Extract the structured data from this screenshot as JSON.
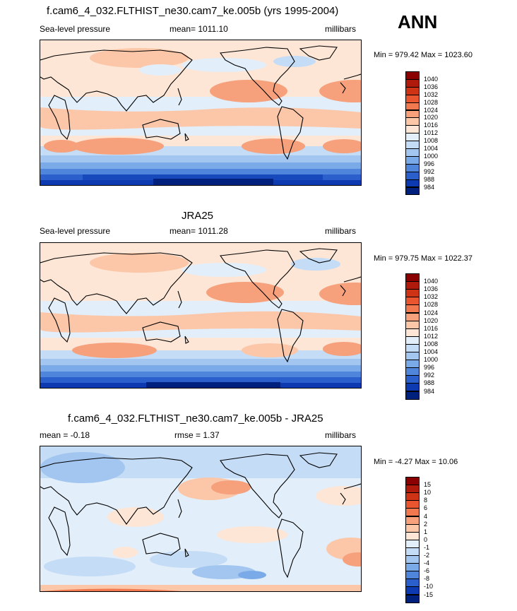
{
  "season_label": "ANN",
  "panels": [
    {
      "title": "f.cam6_4_032.FLTHIST_ne30.cam7_ke.005b (yrs 1995-2004)",
      "left_label": "Sea-level pressure",
      "center_label": "mean= 1011.10",
      "right_label": "millibars",
      "minmax": "Min = 979.42 Max = 1023.60"
    },
    {
      "title": "JRA25",
      "left_label": "Sea-level pressure",
      "center_label": "mean= 1011.28",
      "right_label": "millibars",
      "minmax": "Min = 979.75 Max = 1022.37"
    },
    {
      "title": "f.cam6_4_032.FLTHIST_ne30.cam7_ke.005b - JRA25",
      "left_label": "mean =  -0.18",
      "center_label": "rmse =   1.37",
      "right_label": "millibars",
      "minmax": "Min =  -4.27 Max =  10.06"
    }
  ],
  "colorbars": {
    "slp": {
      "labels": [
        "1040",
        "1036",
        "1032",
        "1028",
        "1024",
        "1020",
        "1016",
        "1012",
        "1008",
        "1004",
        "1000",
        "996",
        "992",
        "988",
        "984"
      ],
      "colors": [
        "#8b0000",
        "#b01a0c",
        "#cf3316",
        "#e8552e",
        "#f1784f",
        "#f6a07c",
        "#fbc7a8",
        "#fde6d6",
        "#e2eefa",
        "#c4dcf5",
        "#a2c6ef",
        "#7aaae7",
        "#4f86dc",
        "#2a5fcc",
        "#0d3ab0",
        "#00207e"
      ]
    },
    "diff": {
      "labels": [
        "15",
        "10",
        "8",
        "6",
        "4",
        "2",
        "1",
        "0",
        "-1",
        "-2",
        "-4",
        "-6",
        "-8",
        "-10",
        "-15"
      ],
      "colors": [
        "#8b0000",
        "#b01a0c",
        "#cf3316",
        "#e8552e",
        "#f1784f",
        "#f6a07c",
        "#fbc7a8",
        "#fde6d6",
        "#e2eefa",
        "#c4dcf5",
        "#a2c6ef",
        "#7aaae7",
        "#4f86dc",
        "#2a5fcc",
        "#0d3ab0",
        "#00207e"
      ]
    }
  }
}
